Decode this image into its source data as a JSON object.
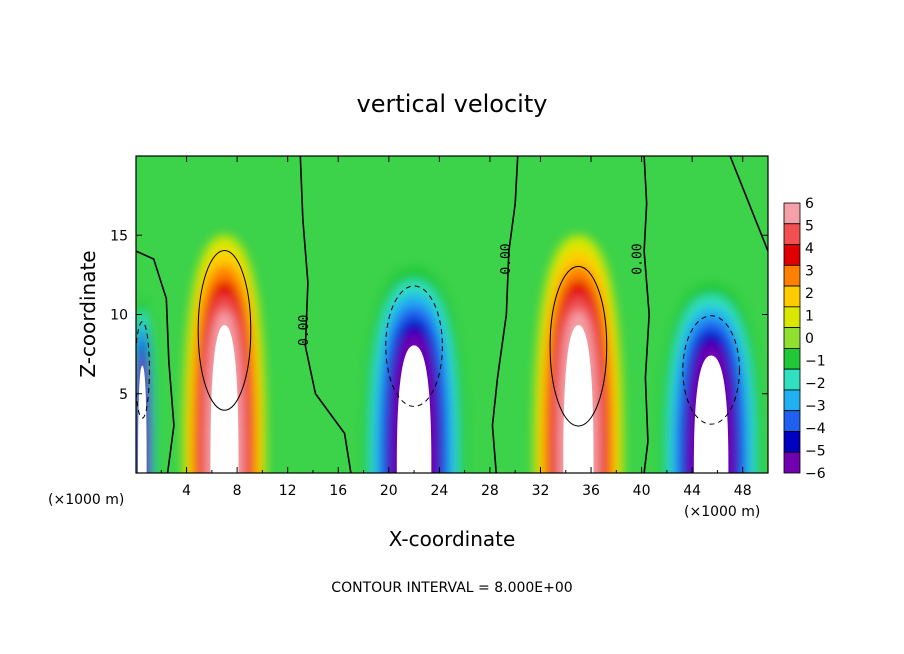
{
  "chart_data": {
    "type": "heatmap",
    "title": "vertical velocity",
    "xlabel": "X-coordinate",
    "ylabel": "Z-coordinate",
    "x_unit_label": "(×1000 m)",
    "y_unit_label": "(×1000 m)",
    "footer": "CONTOUR INTERVAL = 8.000E+00",
    "xlim": [
      0,
      50
    ],
    "ylim": [
      0,
      20
    ],
    "x_ticks": [
      4,
      8,
      12,
      16,
      20,
      24,
      28,
      32,
      36,
      40,
      44,
      48
    ],
    "y_ticks": [
      5,
      10,
      15
    ],
    "colorbar": {
      "levels": [
        6,
        5,
        4,
        3,
        2,
        1,
        0,
        -1,
        -2,
        -3,
        -4,
        -5,
        -6
      ],
      "labels": [
        "6",
        "5",
        "4",
        "3",
        "2",
        "1",
        "0",
        "−1",
        "−2",
        "−3",
        "−4",
        "−5",
        "−6"
      ],
      "colors": [
        "#f4a0a8",
        "#f05050",
        "#e00000",
        "#ff8000",
        "#ffcc00",
        "#d8e800",
        "#90e030",
        "#20c838",
        "#30e0c0",
        "#20b0f0",
        "#2060f0",
        "#0000c0",
        "#7000b0"
      ]
    },
    "contour_labels": [
      {
        "text": "0.00",
        "x": 13.6,
        "y": 9.0
      },
      {
        "text": "0.00",
        "x": 29.6,
        "y": 13.5
      },
      {
        "text": "0.00",
        "x": 40.0,
        "y": 13.5
      }
    ],
    "features": {
      "updrafts": [
        {
          "center_x": 7.0,
          "center_z": 9.0,
          "width": 6.5,
          "top_z": 15.0,
          "peak": "> 6"
        },
        {
          "center_x": 35.0,
          "center_z": 8.0,
          "width": 7.0,
          "top_z": 15.0,
          "peak": "> 6"
        }
      ],
      "downdrafts": [
        {
          "center_x": 22.0,
          "center_z": 8.0,
          "width": 8.0,
          "top_z": 13.0,
          "peak": "< -6"
        },
        {
          "center_x": 45.5,
          "center_z": 6.5,
          "width": 8.0,
          "top_z": 12.0,
          "peak": "< -6"
        },
        {
          "center_x": 0.5,
          "center_z": 6.5,
          "width": 2.0,
          "top_z": 11.0,
          "peak": "< -6"
        }
      ]
    },
    "grid": false
  }
}
